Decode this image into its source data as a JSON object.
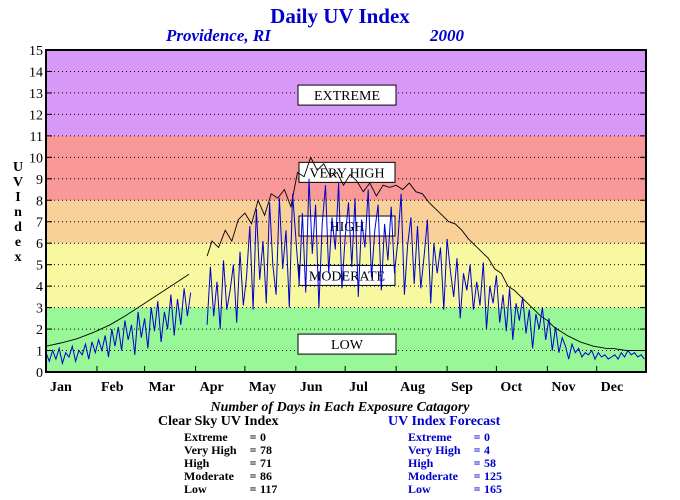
{
  "title": "Daily UV Index",
  "subtitle_left": "Providence, RI",
  "subtitle_right": "2000",
  "ylabel_letters": [
    "U",
    "V",
    "",
    "I",
    "n",
    "d",
    "e",
    "x"
  ],
  "caption": "Number of Days in Each Exposure Catagory",
  "clear_sky": {
    "heading": "Clear Sky UV Index",
    "rows": [
      {
        "label": "Extreme",
        "eq": "=",
        "value": "0"
      },
      {
        "label": "Very High",
        "eq": "=",
        "value": "78"
      },
      {
        "label": "High",
        "eq": "=",
        "value": "71"
      },
      {
        "label": "Moderate",
        "eq": "=",
        "value": "86"
      },
      {
        "label": "Low",
        "eq": "=",
        "value": "117"
      }
    ]
  },
  "forecast": {
    "heading": "UV Index Forecast",
    "rows": [
      {
        "label": "Extreme",
        "eq": "=",
        "value": "0"
      },
      {
        "label": "Very High",
        "eq": "=",
        "value": "4"
      },
      {
        "label": "High",
        "eq": "=",
        "value": "58"
      },
      {
        "label": "Moderate",
        "eq": "=",
        "value": "125"
      },
      {
        "label": "Low",
        "eq": "=",
        "value": "165"
      }
    ]
  },
  "chart_data": {
    "type": "line",
    "title": "Daily UV Index",
    "ylabel": "UV Index",
    "ylim": [
      0,
      15
    ],
    "yticks": [
      0,
      1,
      2,
      3,
      4,
      5,
      6,
      7,
      8,
      9,
      10,
      11,
      12,
      13,
      14,
      15
    ],
    "xlim": [
      1,
      366
    ],
    "x_tick_labels": [
      "Jan",
      "Feb",
      "Mar",
      "Apr",
      "May",
      "Jun",
      "Jul",
      "Aug",
      "Sep",
      "Oct",
      "Nov",
      "Dec"
    ],
    "x_tick_days": [
      1,
      32,
      61,
      92,
      122,
      153,
      183,
      214,
      245,
      275,
      306,
      336
    ],
    "grid": true,
    "bands": [
      {
        "label": "LOW",
        "from": 0,
        "to": 3,
        "color": "#98f898"
      },
      {
        "label": "MODERATE",
        "from": 3,
        "to": 6,
        "color": "#f8f8a0"
      },
      {
        "label": "HIGH",
        "from": 6,
        "to": 8,
        "color": "#f8d098"
      },
      {
        "label": "VERY HIGH",
        "from": 8,
        "to": 11,
        "color": "#f89898"
      },
      {
        "label": "EXTREME",
        "from": 11,
        "to": 15,
        "color": "#d898f8"
      }
    ],
    "band_label_values": {
      "EXTREME": 12.9,
      "VERY HIGH": 9.3,
      "HIGH": 6.8,
      "MODERATE": 4.5,
      "LOW": 1.3
    },
    "series": [
      {
        "style": "clear_sky",
        "color": "#000000",
        "segments": [
          {
            "x": [
              1,
              10,
              20,
              30,
              40,
              50,
              60,
              70,
              80,
              88
            ],
            "y": [
              1.2,
              1.35,
              1.55,
              1.85,
              2.2,
              2.65,
              3.15,
              3.65,
              4.15,
              4.55
            ]
          },
          {
            "x": [
              99,
              102,
              106,
              110,
              114,
              118,
              122,
              126,
              130,
              134,
              138,
              142,
              146,
              150,
              154,
              158,
              162,
              166,
              170,
              174,
              178,
              182,
              186,
              190,
              194,
              198,
              202,
              206,
              210,
              214,
              218,
              222,
              226,
              230,
              234,
              238,
              242,
              246,
              250,
              254,
              258,
              262,
              266,
              270,
              274,
              278,
              282,
              286,
              290,
              294,
              298,
              302,
              306,
              310,
              314,
              318,
              322,
              326,
              330,
              334,
              338,
              342,
              346,
              350,
              354,
              358,
              362,
              366
            ],
            "y": [
              5.4,
              6.1,
              5.8,
              6.6,
              6.1,
              7.1,
              7.4,
              6.9,
              8.0,
              7.3,
              8.3,
              8.1,
              8.5,
              7.7,
              9.3,
              9.1,
              10.0,
              9.4,
              9.7,
              9.1,
              9.3,
              8.7,
              9.2,
              8.9,
              8.4,
              8.8,
              8.2,
              8.7,
              8.6,
              8.7,
              8.5,
              8.8,
              8.4,
              8.3,
              7.9,
              7.6,
              7.3,
              7.0,
              6.9,
              6.6,
              6.2,
              5.9,
              5.6,
              5.3,
              4.8,
              4.6,
              4.0,
              3.8,
              3.5,
              3.2,
              2.9,
              2.6,
              2.4,
              2.1,
              1.9,
              1.7,
              1.55,
              1.4,
              1.3,
              1.2,
              1.15,
              1.1,
              1.1,
              1.05,
              1.0,
              1.0,
              1.0,
              1.0
            ]
          }
        ]
      },
      {
        "style": "forecast",
        "color": "#0000cc",
        "segments": [
          {
            "x": [
              1,
              3,
              5,
              7,
              9,
              11,
              13,
              15,
              17,
              19,
              21,
              23,
              25,
              27,
              29,
              31,
              33,
              35,
              37,
              39,
              41,
              43,
              45,
              47,
              49,
              51,
              53,
              55,
              57,
              59,
              61,
              63,
              65,
              67,
              69,
              71,
              73,
              75,
              77,
              79,
              81,
              83,
              85,
              87,
              89
            ],
            "y": [
              0.9,
              0.5,
              1.0,
              0.6,
              1.1,
              0.4,
              0.9,
              0.7,
              1.2,
              0.5,
              1.0,
              0.8,
              1.3,
              0.6,
              1.4,
              0.9,
              1.5,
              1.0,
              1.7,
              0.7,
              2.0,
              1.2,
              2.1,
              1.0,
              2.4,
              1.5,
              2.2,
              0.8,
              2.8,
              1.6,
              2.5,
              1.1,
              3.0,
              1.9,
              3.3,
              1.4,
              2.8,
              2.0,
              3.6,
              1.7,
              3.4,
              2.2,
              3.9,
              2.6,
              3.7
            ]
          },
          {
            "x": [
              99,
              101,
              103,
              105,
              107,
              109,
              111,
              113,
              115,
              117,
              119,
              121,
              123,
              125,
              127,
              129,
              131,
              133,
              135,
              137,
              139,
              141,
              143,
              145,
              147,
              149,
              151,
              153,
              155,
              157,
              159,
              161,
              163,
              165,
              167,
              169,
              171,
              173,
              175,
              177,
              179,
              181,
              183,
              185,
              187,
              189,
              191,
              193,
              195,
              197,
              199,
              201,
              203,
              205,
              207,
              209,
              211,
              213,
              215,
              217,
              219,
              221,
              223,
              225,
              227,
              229,
              231,
              233,
              235,
              237,
              239,
              241,
              243,
              245,
              247,
              249,
              251,
              253,
              255,
              257,
              259,
              261,
              263,
              265,
              267,
              269,
              271,
              273,
              275,
              277,
              279,
              281,
              283,
              285,
              287,
              289,
              291,
              293,
              295,
              297,
              299,
              301,
              303,
              305,
              307,
              309,
              311,
              313,
              315,
              317,
              319,
              321,
              323,
              325,
              327,
              329,
              331,
              333,
              335,
              337,
              339,
              341,
              343,
              345,
              347,
              349,
              351,
              353,
              355,
              357,
              359,
              361,
              363,
              365
            ],
            "y": [
              2.2,
              4.9,
              2.6,
              4.2,
              2.0,
              5.2,
              2.9,
              3.8,
              5.0,
              2.3,
              5.6,
              3.1,
              4.4,
              6.8,
              2.9,
              7.6,
              4.3,
              6.1,
              3.2,
              7.9,
              5.0,
              3.6,
              8.1,
              4.8,
              6.6,
              3.0,
              8.3,
              6.2,
              4.1,
              7.4,
              3.7,
              9.0,
              5.5,
              7.8,
              3.0,
              6.9,
              8.7,
              4.6,
              7.2,
              5.7,
              8.8,
              3.9,
              6.3,
              7.9,
              4.9,
              8.1,
              3.5,
              7.1,
              5.8,
              8.5,
              4.4,
              6.6,
              7.8,
              3.8,
              6.9,
              5.2,
              7.7,
              4.6,
              6.1,
              8.3,
              3.6,
              5.9,
              7.2,
              4.1,
              6.8,
              3.9,
              5.4,
              7.1,
              3.2,
              6.0,
              4.6,
              5.8,
              2.9,
              6.2,
              4.7,
              3.5,
              5.3,
              2.5,
              4.6,
              3.8,
              5.0,
              2.9,
              4.2,
              3.1,
              5.1,
              2.0,
              4.0,
              3.2,
              4.5,
              2.3,
              3.6,
              1.9,
              3.9,
              1.5,
              3.2,
              2.4,
              3.5,
              1.8,
              2.9,
              1.1,
              2.7,
              2.0,
              3.0,
              1.5,
              2.5,
              1.0,
              2.1,
              0.9,
              1.6,
              1.2,
              0.6,
              1.3,
              0.9,
              1.1,
              0.7,
              0.9,
              0.8,
              1.0,
              0.6,
              0.9,
              0.7,
              0.8,
              0.6,
              0.7,
              0.8,
              0.6,
              0.9,
              0.7,
              1.0,
              0.8,
              0.9,
              0.7,
              0.8,
              0.6
            ]
          }
        ]
      }
    ]
  }
}
